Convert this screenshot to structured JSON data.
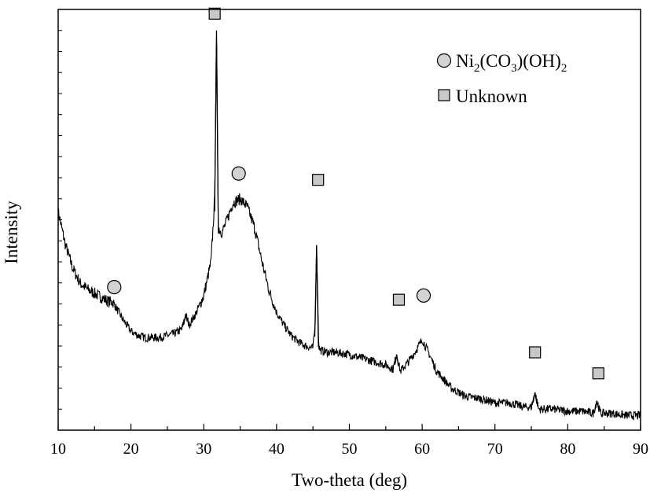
{
  "chart_data": {
    "type": "line",
    "title": "",
    "xlabel": "Two-theta (deg)",
    "ylabel": "Intensity",
    "xlim": [
      10,
      90
    ],
    "ylim": [
      0,
      100
    ],
    "y_ticks_visible": false,
    "x_ticks": [
      10,
      20,
      30,
      40,
      50,
      60,
      70,
      80,
      90
    ],
    "grid": false,
    "legend_placement": "top-right",
    "legend": [
      {
        "marker": "circle",
        "label_main": "Ni",
        "sub1": "2",
        "mid1": "(CO",
        "sub2": "3",
        "mid2": ")(OH)",
        "sub3": "2"
      },
      {
        "marker": "square",
        "label": "Unknown"
      }
    ],
    "series": [
      {
        "color": "#000000",
        "x": [
          10,
          11,
          12,
          13,
          14,
          15,
          16,
          17,
          17.5,
          18,
          19,
          20,
          21,
          22,
          23,
          24,
          25,
          26,
          27,
          27.5,
          28,
          29,
          30,
          31,
          31.5,
          31.75,
          32,
          32.5,
          33,
          34,
          35,
          36,
          37,
          38,
          39,
          40,
          41,
          42,
          43,
          44,
          45,
          45.3,
          45.5,
          45.8,
          46,
          47,
          48,
          50,
          52,
          54,
          55,
          56,
          56.5,
          57,
          58,
          59,
          60,
          61,
          62,
          63,
          64,
          66,
          68,
          70,
          72,
          74,
          75,
          75.5,
          76,
          78,
          80,
          82,
          83.5,
          84,
          84.5,
          86,
          88,
          90
        ],
        "y": [
          52,
          44,
          38.5,
          35,
          33.5,
          32.5,
          31.5,
          30.5,
          30.5,
          29,
          26,
          23.5,
          22.5,
          22,
          22,
          22,
          22.5,
          23,
          24,
          27.5,
          25,
          28,
          32,
          40,
          55,
          95,
          48,
          47,
          49,
          54,
          55,
          53,
          48,
          40,
          33,
          28,
          25,
          22.5,
          21,
          20,
          19.5,
          25,
          44,
          20,
          19,
          18.5,
          18.5,
          18,
          17,
          16,
          15.5,
          14.5,
          18,
          14,
          16,
          18.5,
          21.5,
          18,
          14,
          12,
          10,
          8,
          7.5,
          6.5,
          6.5,
          5.5,
          5.5,
          9,
          5,
          5,
          4.5,
          4.5,
          4,
          7,
          4,
          4,
          3.5,
          3.5
        ]
      }
    ],
    "markers": [
      {
        "type": "circle",
        "x": 17.7,
        "y": 34
      },
      {
        "type": "square",
        "x": 31.5,
        "y": 99
      },
      {
        "type": "circle",
        "x": 34.8,
        "y": 61
      },
      {
        "type": "square",
        "x": 45.7,
        "y": 59.5
      },
      {
        "type": "square",
        "x": 56.8,
        "y": 31
      },
      {
        "type": "circle",
        "x": 60.2,
        "y": 32
      },
      {
        "type": "square",
        "x": 75.5,
        "y": 18.5
      },
      {
        "type": "square",
        "x": 84.2,
        "y": 13.5
      }
    ]
  }
}
